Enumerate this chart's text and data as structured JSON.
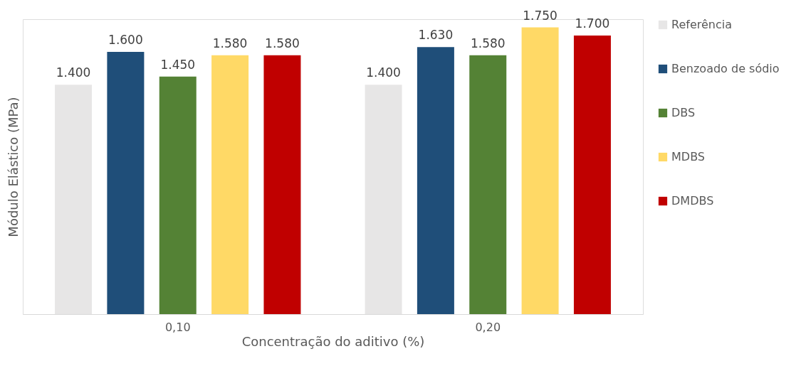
{
  "chart_data": {
    "type": "bar",
    "xlabel": "Concentração do aditivo (%)",
    "ylabel": "Módulo Elástico (MPa)",
    "categories": [
      "0,10",
      "0,20"
    ],
    "grid": false,
    "legend": "right",
    "series": [
      {
        "name": "Referência",
        "color": "#e7e6e6",
        "values": [
          1400,
          1400
        ],
        "value_labels": [
          "1.400",
          "1.400"
        ]
      },
      {
        "name": "Benzoado de sódio",
        "color": "#1f4e79",
        "values": [
          1600,
          1630
        ],
        "value_labels": [
          "1.600",
          "1.630"
        ]
      },
      {
        "name": "DBS",
        "color": "#548235",
        "values": [
          1450,
          1580
        ],
        "value_labels": [
          "1.450",
          "1.580"
        ]
      },
      {
        "name": "MDBS",
        "color": "#ffd966",
        "values": [
          1580,
          1750
        ],
        "value_labels": [
          "1.580",
          "1.750"
        ]
      },
      {
        "name": "DMDBS",
        "color": "#c00000",
        "values": [
          1580,
          1700
        ],
        "value_labels": [
          "1.580",
          "1.700"
        ]
      }
    ]
  }
}
